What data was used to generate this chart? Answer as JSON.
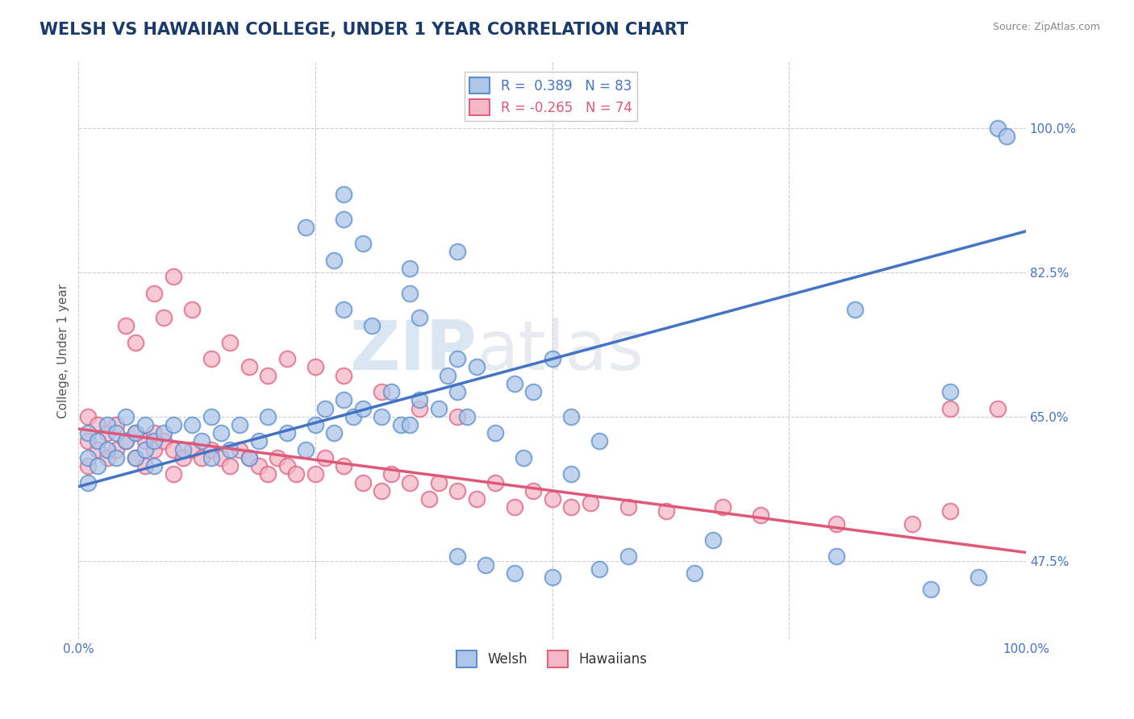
{
  "title": "WELSH VS HAWAIIAN COLLEGE, UNDER 1 YEAR CORRELATION CHART",
  "source_text": "Source: ZipAtlas.com",
  "ylabel": "College, Under 1 year",
  "xlim": [
    0.0,
    1.0
  ],
  "ylim": [
    0.38,
    1.08
  ],
  "yticks": [
    0.475,
    0.65,
    0.825,
    1.0
  ],
  "ytick_labels": [
    "47.5%",
    "65.0%",
    "82.5%",
    "100.0%"
  ],
  "xticks": [
    0.0,
    1.0
  ],
  "xtick_labels": [
    "0.0%",
    "100.0%"
  ],
  "background_color": "#ffffff",
  "grid_color": "#cccccc",
  "welsh_color": "#aec6e8",
  "hawaiian_color": "#f5b8c8",
  "welsh_edge_color": "#5b8fcf",
  "hawaiian_edge_color": "#e06080",
  "welsh_line_color": "#4472c4",
  "hawaiian_line_color": "#e05878",
  "welsh_R": 0.389,
  "welsh_N": 83,
  "hawaiian_R": -0.265,
  "hawaiian_N": 74,
  "legend_title_welsh": "Welsh",
  "legend_title_hawaiian": "Hawaiians",
  "watermark": "ZIPatlas",
  "welsh_line": [
    [
      0.0,
      0.565
    ],
    [
      1.0,
      0.875
    ]
  ],
  "hawaiian_line": [
    [
      0.0,
      0.635
    ],
    [
      1.0,
      0.485
    ]
  ],
  "welsh_scatter_x": [
    0.01,
    0.01,
    0.01,
    0.02,
    0.02,
    0.03,
    0.03,
    0.04,
    0.04,
    0.05,
    0.05,
    0.06,
    0.06,
    0.07,
    0.07,
    0.08,
    0.08,
    0.09,
    0.1,
    0.11,
    0.12,
    0.13,
    0.14,
    0.14,
    0.15,
    0.16,
    0.17,
    0.18,
    0.19,
    0.2,
    0.22,
    0.24,
    0.25,
    0.26,
    0.27,
    0.28,
    0.29,
    0.3,
    0.32,
    0.33,
    0.34,
    0.35,
    0.36,
    0.38,
    0.39,
    0.4,
    0.41,
    0.42,
    0.44,
    0.46,
    0.48,
    0.5,
    0.52,
    0.28,
    0.31,
    0.35,
    0.36,
    0.4,
    0.24,
    0.27,
    0.3,
    0.35,
    0.28,
    0.28,
    0.4,
    0.82,
    0.92,
    0.97,
    0.98,
    0.4,
    0.43,
    0.46,
    0.5,
    0.55,
    0.58,
    0.65,
    0.67,
    0.8,
    0.9,
    0.95,
    0.47,
    0.52,
    0.55
  ],
  "welsh_scatter_y": [
    0.63,
    0.6,
    0.57,
    0.62,
    0.59,
    0.64,
    0.61,
    0.63,
    0.6,
    0.65,
    0.62,
    0.63,
    0.6,
    0.64,
    0.61,
    0.62,
    0.59,
    0.63,
    0.64,
    0.61,
    0.64,
    0.62,
    0.65,
    0.6,
    0.63,
    0.61,
    0.64,
    0.6,
    0.62,
    0.65,
    0.63,
    0.61,
    0.64,
    0.66,
    0.63,
    0.67,
    0.65,
    0.66,
    0.65,
    0.68,
    0.64,
    0.64,
    0.67,
    0.66,
    0.7,
    0.68,
    0.65,
    0.71,
    0.63,
    0.69,
    0.68,
    0.72,
    0.65,
    0.78,
    0.76,
    0.8,
    0.77,
    0.72,
    0.88,
    0.84,
    0.86,
    0.83,
    0.92,
    0.89,
    0.85,
    0.78,
    0.68,
    1.0,
    0.99,
    0.48,
    0.47,
    0.46,
    0.455,
    0.465,
    0.48,
    0.46,
    0.5,
    0.48,
    0.44,
    0.455,
    0.6,
    0.58,
    0.62
  ],
  "hawaiian_scatter_x": [
    0.01,
    0.01,
    0.01,
    0.02,
    0.02,
    0.03,
    0.03,
    0.04,
    0.04,
    0.05,
    0.06,
    0.06,
    0.07,
    0.07,
    0.08,
    0.08,
    0.09,
    0.1,
    0.1,
    0.11,
    0.12,
    0.13,
    0.14,
    0.15,
    0.16,
    0.17,
    0.18,
    0.19,
    0.2,
    0.21,
    0.22,
    0.23,
    0.25,
    0.26,
    0.28,
    0.3,
    0.32,
    0.33,
    0.35,
    0.37,
    0.38,
    0.4,
    0.42,
    0.44,
    0.46,
    0.48,
    0.5,
    0.52,
    0.05,
    0.06,
    0.08,
    0.09,
    0.1,
    0.12,
    0.14,
    0.16,
    0.18,
    0.2,
    0.22,
    0.25,
    0.28,
    0.32,
    0.36,
    0.4,
    0.54,
    0.58,
    0.62,
    0.68,
    0.72,
    0.8,
    0.88,
    0.92,
    0.92,
    0.97
  ],
  "hawaiian_scatter_y": [
    0.65,
    0.62,
    0.59,
    0.64,
    0.61,
    0.63,
    0.6,
    0.64,
    0.61,
    0.62,
    0.63,
    0.6,
    0.62,
    0.59,
    0.63,
    0.61,
    0.62,
    0.61,
    0.58,
    0.6,
    0.61,
    0.6,
    0.61,
    0.6,
    0.59,
    0.61,
    0.6,
    0.59,
    0.58,
    0.6,
    0.59,
    0.58,
    0.58,
    0.6,
    0.59,
    0.57,
    0.56,
    0.58,
    0.57,
    0.55,
    0.57,
    0.56,
    0.55,
    0.57,
    0.54,
    0.56,
    0.55,
    0.54,
    0.76,
    0.74,
    0.8,
    0.77,
    0.82,
    0.78,
    0.72,
    0.74,
    0.71,
    0.7,
    0.72,
    0.71,
    0.7,
    0.68,
    0.66,
    0.65,
    0.545,
    0.54,
    0.535,
    0.54,
    0.53,
    0.52,
    0.52,
    0.535,
    0.66,
    0.66
  ]
}
